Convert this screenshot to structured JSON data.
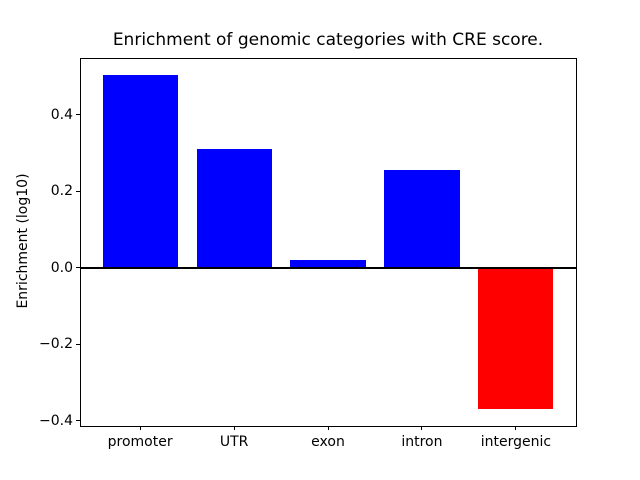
{
  "chart_data": {
    "type": "bar",
    "title": "Enrichment of genomic categories with CRE score.",
    "xlabel": "",
    "ylabel": "Enrichment (log10)",
    "categories": [
      "promoter",
      "UTR",
      "exon",
      "intron",
      "intergenic"
    ],
    "values": [
      0.505,
      0.31,
      0.02,
      0.255,
      -0.37
    ],
    "bar_colors": [
      "#0000ff",
      "#0000ff",
      "#0000ff",
      "#0000ff",
      "#ff0000"
    ],
    "bar_width": 0.8,
    "xlim": [
      -0.64,
      4.64
    ],
    "ylim": [
      -0.414,
      0.549
    ],
    "yticks": [
      0.4,
      0.2,
      0.0,
      -0.2,
      -0.4
    ],
    "ytick_labels": [
      "0.4",
      "0.2",
      "0.0",
      "−0.2",
      "−0.4"
    ],
    "zero_line": {
      "y": 0,
      "color": "#000000",
      "thickness_px": 2
    },
    "grid": false,
    "legend": null,
    "text_color": "#000000",
    "background": "#ffffff",
    "spine_color": "#000000"
  }
}
